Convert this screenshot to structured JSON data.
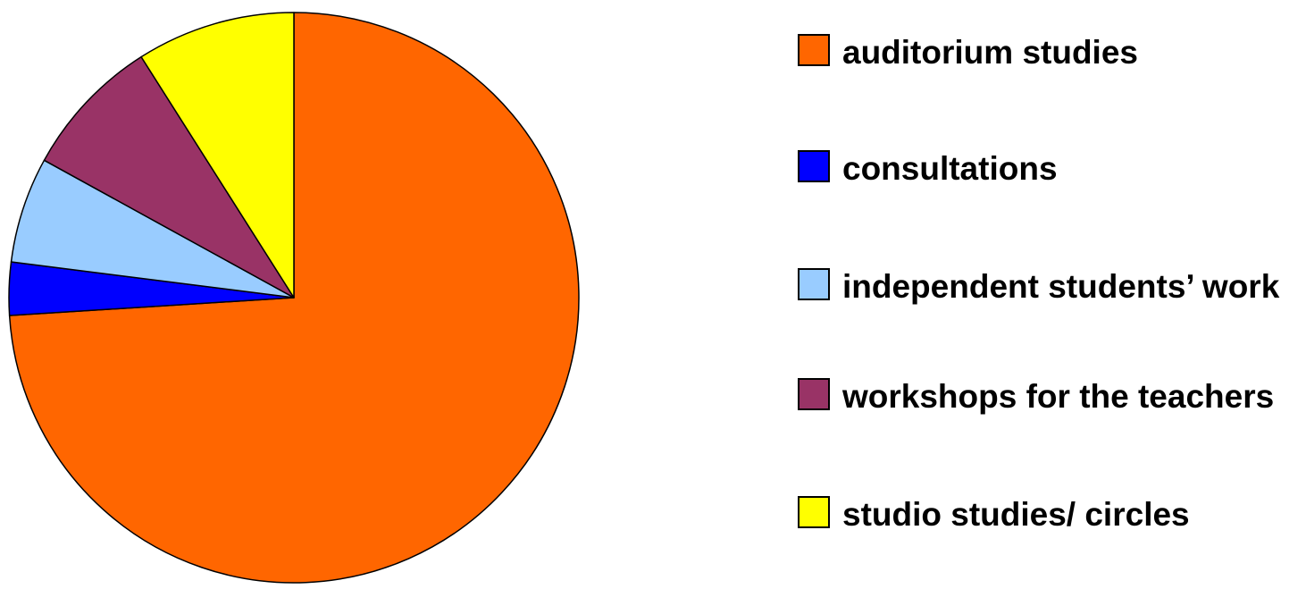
{
  "chart_data": {
    "type": "pie",
    "categories": [
      "auditorium studies",
      "consultations",
      "independent students’ work",
      "workshops for the teachers",
      "studio studies/ circles"
    ],
    "values": [
      74,
      3,
      6,
      8,
      9
    ],
    "colors": [
      "#FF6600",
      "#0000FF",
      "#99CCFF",
      "#993366",
      "#FFFF00"
    ],
    "legend": "right"
  }
}
